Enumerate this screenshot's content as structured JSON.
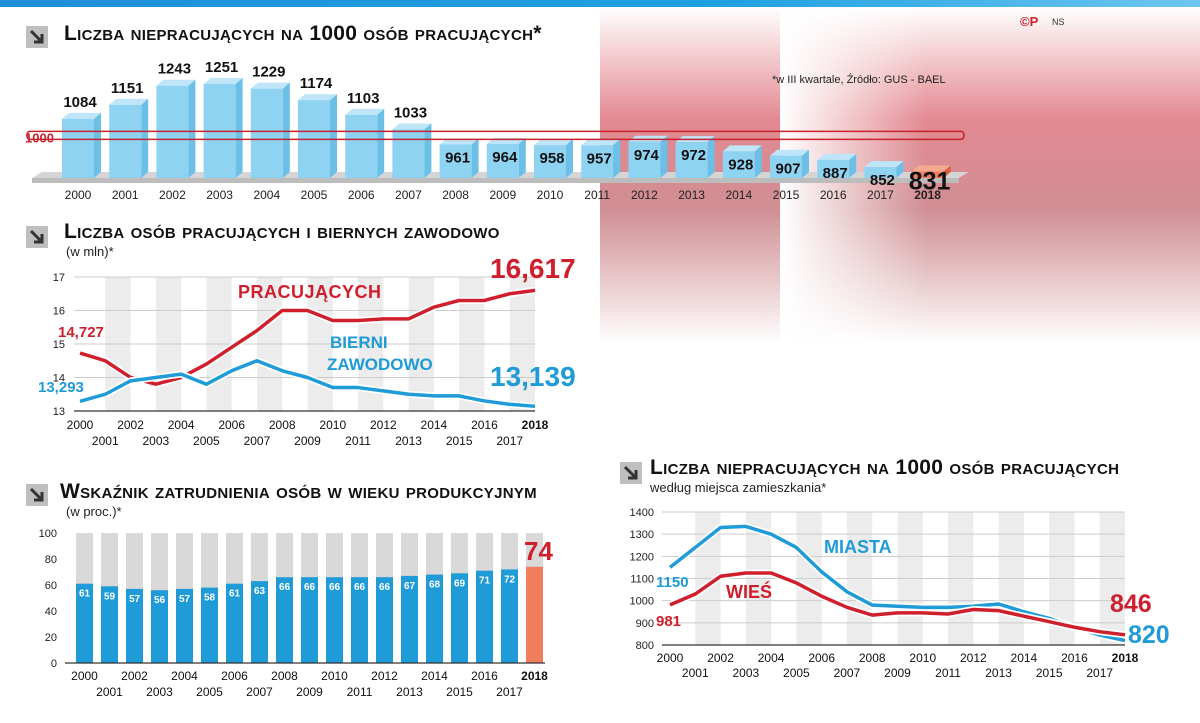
{
  "copyright": "©P",
  "initials": "NS",
  "chart_data": [
    {
      "type": "bar",
      "title": "Liczba niepracujących na 1000 osób pracujących*",
      "note": "*w III kwartale, Źródło: GUS - BAEL",
      "reference_label": "1000",
      "reference_value": 1000,
      "categories": [
        "2000",
        "2001",
        "2002",
        "2003",
        "2004",
        "2005",
        "2006",
        "2007",
        "2008",
        "2009",
        "2010",
        "2011",
        "2012",
        "2013",
        "2014",
        "2015",
        "2016",
        "2017",
        "2018"
      ],
      "values": [
        1084,
        1151,
        1243,
        1251,
        1229,
        1174,
        1103,
        1033,
        961,
        964,
        958,
        957,
        974,
        972,
        928,
        907,
        887,
        852,
        831
      ],
      "colors": {
        "bar": "#8fd3f3",
        "highlight": "#f07d5c",
        "reference": "#c8222e"
      }
    },
    {
      "type": "line",
      "title": "Liczba osób pracujących i biernych zawodowo",
      "subtitle": "(w mln)*",
      "x": [
        2000,
        2001,
        2002,
        2003,
        2004,
        2005,
        2006,
        2007,
        2008,
        2009,
        2010,
        2011,
        2012,
        2013,
        2014,
        2015,
        2016,
        2017,
        2018
      ],
      "x_tick_labels": [
        "2000",
        "2001",
        "2002",
        "2003",
        "2004",
        "2005",
        "2006",
        "2007",
        "2008",
        "2009",
        "2010",
        "2011",
        "2012",
        "2013",
        "2014",
        "2015",
        "2016",
        "2017",
        "2018"
      ],
      "ylim": [
        13,
        17
      ],
      "yticks": [
        "13",
        "14",
        "15",
        "16",
        "17"
      ],
      "series": [
        {
          "name": "PRACUJĄCYCH",
          "color": "#d01f2c",
          "start_label": "14,727",
          "end_label": "16,617",
          "values": [
            14.73,
            14.5,
            14.0,
            13.8,
            14.0,
            14.4,
            14.9,
            15.4,
            16.0,
            16.0,
            15.7,
            15.7,
            15.75,
            15.75,
            16.1,
            16.3,
            16.3,
            16.5,
            16.6
          ]
        },
        {
          "name": "BIERNI ZAWODOWO",
          "color": "#1f9bd7",
          "start_label": "13,293",
          "end_label": "13,139",
          "values": [
            13.29,
            13.5,
            13.9,
            14.0,
            14.1,
            13.8,
            14.2,
            14.5,
            14.2,
            14.0,
            13.7,
            13.7,
            13.6,
            13.5,
            13.45,
            13.45,
            13.3,
            13.2,
            13.14
          ]
        }
      ]
    },
    {
      "type": "bar",
      "title": "Wskaźnik zatrudnienia osób w wieku produkcyjnym",
      "subtitle": "(w proc.)*",
      "categories": [
        "2000",
        "2001",
        "2002",
        "2003",
        "2004",
        "2005",
        "2006",
        "2007",
        "2008",
        "2009",
        "2010",
        "2011",
        "2012",
        "2013",
        "2014",
        "2015",
        "2016",
        "2017",
        "2018"
      ],
      "values": [
        61,
        59,
        57,
        56,
        57,
        58,
        61,
        63,
        66,
        66,
        66,
        66,
        66,
        67,
        68,
        69,
        71,
        72,
        74
      ],
      "ylim": [
        0,
        100
      ],
      "yticks": [
        "0",
        "20",
        "40",
        "60",
        "80",
        "100"
      ],
      "colors": {
        "bar": "#1f9bd7",
        "highlight": "#f07d5c",
        "ghost": "#d9d9d9"
      }
    },
    {
      "type": "line",
      "title": "Liczba niepracujących na 1000 osób pracujących",
      "subtitle": "według miejsca zamieszkania*",
      "x": [
        2000,
        2001,
        2002,
        2003,
        2004,
        2005,
        2006,
        2007,
        2008,
        2009,
        2010,
        2011,
        2012,
        2013,
        2014,
        2015,
        2016,
        2017,
        2018
      ],
      "x_tick_labels": [
        "2000",
        "2001",
        "2002",
        "2003",
        "2004",
        "2005",
        "2006",
        "2007",
        "2008",
        "2009",
        "2010",
        "2011",
        "2012",
        "2013",
        "2014",
        "2015",
        "2016",
        "2017",
        "2018"
      ],
      "ylim": [
        800,
        1400
      ],
      "yticks": [
        "800",
        "900",
        "1000",
        "1100",
        "1200",
        "1300",
        "1400"
      ],
      "series": [
        {
          "name": "MIASTA",
          "color": "#1f9bd7",
          "start_label": "1150",
          "end_label": "820",
          "values": [
            1150,
            1240,
            1330,
            1335,
            1300,
            1240,
            1130,
            1040,
            980,
            975,
            970,
            970,
            975,
            985,
            950,
            920,
            880,
            845,
            820
          ]
        },
        {
          "name": "WIEŚ",
          "color": "#d01f2c",
          "start_label": "981",
          "end_label": "846",
          "values": [
            981,
            1030,
            1110,
            1125,
            1125,
            1080,
            1020,
            970,
            935,
            945,
            945,
            940,
            960,
            955,
            930,
            905,
            880,
            860,
            846
          ]
        }
      ]
    }
  ]
}
